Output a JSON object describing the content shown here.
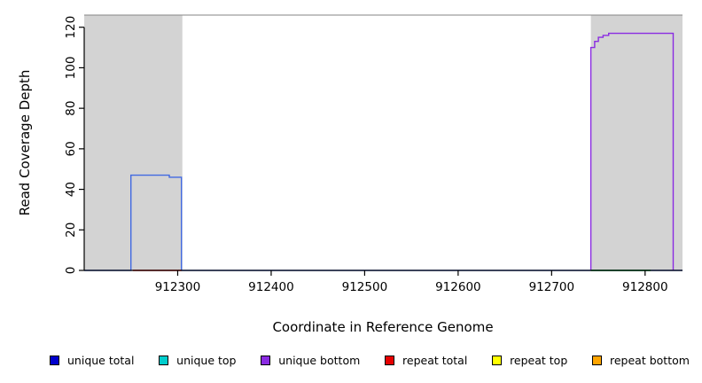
{
  "figure": {
    "xlabel": "Coordinate in Reference Genome",
    "ylabel": "Read Coverage Depth"
  },
  "legend": {
    "position": "bottom",
    "items": [
      {
        "label": "unique total",
        "color": "#0000cd"
      },
      {
        "label": "unique top",
        "color": "#00cdcd"
      },
      {
        "label": "unique bottom",
        "color": "#8a2be2"
      },
      {
        "label": "repeat total",
        "color": "#e60000"
      },
      {
        "label": "repeat top",
        "color": "#ffff00"
      },
      {
        "label": "repeat bottom",
        "color": "#ffa500"
      }
    ]
  },
  "chart_data": {
    "type": "line",
    "title": "",
    "xlabel": "Coordinate in Reference Genome",
    "ylabel": "Read Coverage Depth",
    "xlim": [
      912200,
      912840
    ],
    "ylim": [
      0,
      126
    ],
    "x_ticks": [
      912300,
      912400,
      912500,
      912600,
      912700,
      912800
    ],
    "y_ticks": [
      0,
      20,
      40,
      60,
      80,
      100,
      120
    ],
    "grid": false,
    "legend_position": "bottom",
    "shaded_regions": [
      {
        "name": "left-gray-region",
        "x0": 912200,
        "x1": 912305,
        "color": "#d3d3d3"
      },
      {
        "name": "right-gray-region",
        "x0": 912742,
        "x1": 912840,
        "color": "#d3d3d3"
      }
    ],
    "top_boundary_line": {
      "y": 126,
      "color": "#858585"
    },
    "series": [
      {
        "name": "unique total",
        "color": "#4169e1",
        "step": true,
        "points": [
          [
            912200,
            0
          ],
          [
            912250,
            0
          ],
          [
            912250,
            47
          ],
          [
            912291,
            47
          ],
          [
            912291,
            46
          ],
          [
            912304,
            46
          ],
          [
            912304,
            0
          ],
          [
            912840,
            0
          ]
        ]
      },
      {
        "name": "unique bottom",
        "color": "#8a2be2",
        "step": true,
        "points": [
          [
            912742,
            0
          ],
          [
            912742,
            110
          ],
          [
            912746,
            110
          ],
          [
            912746,
            113
          ],
          [
            912750,
            113
          ],
          [
            912750,
            115
          ],
          [
            912755,
            115
          ],
          [
            912755,
            116
          ],
          [
            912761,
            116
          ],
          [
            912761,
            117
          ],
          [
            912830,
            117
          ],
          [
            912830,
            0
          ]
        ]
      },
      {
        "name": "repeat total",
        "color": "#e60000",
        "step": true,
        "points": [
          [
            912252,
            0
          ],
          [
            912304,
            0
          ]
        ]
      },
      {
        "name": "green baseline segment",
        "color": "#00b400",
        "step": true,
        "points": [
          [
            912742,
            0
          ],
          [
            912806,
            0
          ]
        ]
      }
    ]
  }
}
